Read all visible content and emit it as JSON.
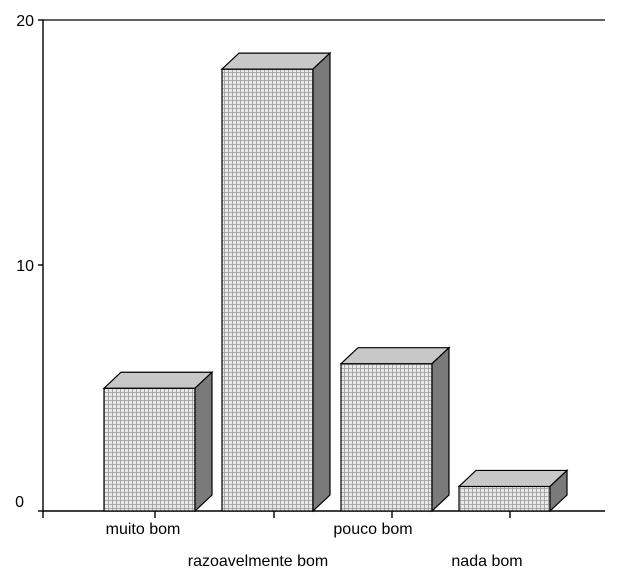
{
  "chart_data": {
    "type": "bar",
    "categories": [
      "muito bom",
      "razoavelmente bom",
      "pouco bom",
      "nada bom"
    ],
    "values": [
      5,
      18,
      6,
      1
    ],
    "title": "",
    "xlabel": "",
    "ylabel": "",
    "ylim": [
      0,
      20
    ],
    "y_ticks": [
      "0",
      "10",
      "20"
    ],
    "grid": false,
    "legend": "none",
    "style": "3d-bar",
    "colors": {
      "bar_front": "#e6e6e6",
      "bar_pattern": "#9a9a9a",
      "bar_top": "#c8c8c8",
      "bar_side": "#7a7a7a"
    }
  }
}
